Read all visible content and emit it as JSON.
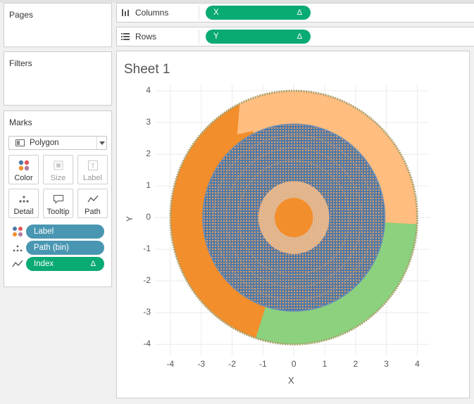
{
  "panels": {
    "pages": {
      "title": "Pages"
    },
    "filters": {
      "title": "Filters"
    },
    "marks": {
      "title": "Marks",
      "mark_type": "Polygon",
      "buttons": [
        {
          "label": "Color",
          "icon": "color-icon"
        },
        {
          "label": "Size",
          "icon": "size-icon"
        },
        {
          "label": "Label",
          "icon": "label-icon"
        },
        {
          "label": "Detail",
          "icon": "detail-icon"
        },
        {
          "label": "Tooltip",
          "icon": "tooltip-icon"
        },
        {
          "label": "Path",
          "icon": "path-icon"
        }
      ],
      "fields": [
        {
          "label": "Label",
          "icon": "color-icon",
          "color": "#4996b2"
        },
        {
          "label": "Path (bin)",
          "icon": "detail-icon",
          "color": "#4996b2"
        },
        {
          "label": "Index",
          "icon": "path-icon",
          "color": "#0aaa73",
          "delta": "Δ"
        }
      ]
    }
  },
  "shelves": {
    "columns": {
      "label": "Columns",
      "pill": "X",
      "delta": "Δ"
    },
    "rows": {
      "label": "Rows",
      "pill": "Y",
      "delta": "Δ"
    }
  },
  "sheet": {
    "title": "Sheet 1"
  },
  "chart_data": {
    "type": "polygon",
    "xlabel": "X",
    "ylabel": "Y",
    "xlim": [
      -4.5,
      4.4
    ],
    "ylim": [
      -4.35,
      4.2
    ],
    "xticks": [
      -4,
      -3,
      -2,
      -1,
      0,
      1,
      2,
      3,
      4
    ],
    "yticks": [
      4,
      3,
      2,
      1,
      0,
      -1,
      -2,
      -3,
      -4
    ],
    "grid": true,
    "outer_radius": 4.0,
    "colors": {
      "light_orange": "#ffbd7f",
      "orange": "#f28e2b",
      "green": "#8cd17d",
      "blue": "#4e79a7",
      "tan": "#e8b88a",
      "border": "#a8a070"
    }
  }
}
